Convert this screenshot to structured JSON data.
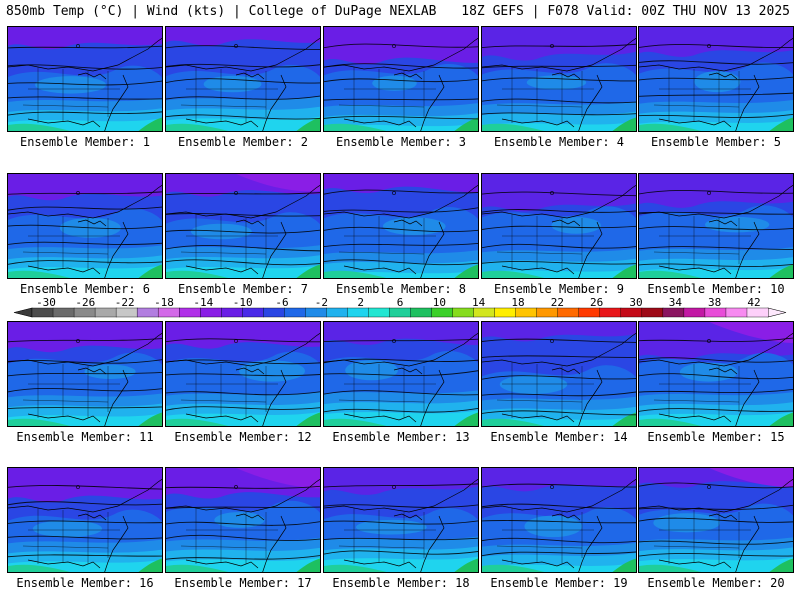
{
  "header": {
    "left": "850mb Temp (°C) | Wind (kts) | College of DuPage NEXLAB",
    "right": "18Z GEFS | F078 Valid: 00Z THU NOV 13 2025"
  },
  "panels": [
    {
      "label": "Ensemble Member: 1"
    },
    {
      "label": "Ensemble Member: 2"
    },
    {
      "label": "Ensemble Member: 3"
    },
    {
      "label": "Ensemble Member: 4"
    },
    {
      "label": "Ensemble Member: 5"
    },
    {
      "label": "Ensemble Member: 6"
    },
    {
      "label": "Ensemble Member: 7"
    },
    {
      "label": "Ensemble Member: 8"
    },
    {
      "label": "Ensemble Member: 9"
    },
    {
      "label": "Ensemble Member: 10"
    },
    {
      "label": "Ensemble Member: 11"
    },
    {
      "label": "Ensemble Member: 12"
    },
    {
      "label": "Ensemble Member: 13"
    },
    {
      "label": "Ensemble Member: 14"
    },
    {
      "label": "Ensemble Member: 15"
    },
    {
      "label": "Ensemble Member: 16"
    },
    {
      "label": "Ensemble Member: 17"
    },
    {
      "label": "Ensemble Member: 18"
    },
    {
      "label": "Ensemble Member: 19"
    },
    {
      "label": "Ensemble Member: 20"
    }
  ],
  "colorbar": {
    "ticks": [
      "-30",
      "-26",
      "-22",
      "-18",
      "-14",
      "-10",
      "-6",
      "-2",
      "2",
      "6",
      "10",
      "14",
      "18",
      "22",
      "26",
      "30",
      "34",
      "38",
      "42"
    ],
    "colors": [
      "#4d4d4d",
      "#6b6b6b",
      "#8a8a8a",
      "#a9a9a9",
      "#c7c7c7",
      "#b27ee0",
      "#d36ae8",
      "#b030e8",
      "#8a1ee6",
      "#6a1ee6",
      "#4a2ae8",
      "#2a46e4",
      "#1f68e8",
      "#1f8be8",
      "#20b2ee",
      "#1fd4ee",
      "#22e6d2",
      "#1fcf9a",
      "#1ec060",
      "#3bd02a",
      "#86dc1e",
      "#d2e61e",
      "#ffee00",
      "#ffc400",
      "#ff9800",
      "#ff6a00",
      "#ff3a00",
      "#e8161a",
      "#c40a18",
      "#9e0a18",
      "#8a1560",
      "#c218a4",
      "#e84cd8",
      "#f78af0",
      "#fdd0fa"
    ]
  }
}
